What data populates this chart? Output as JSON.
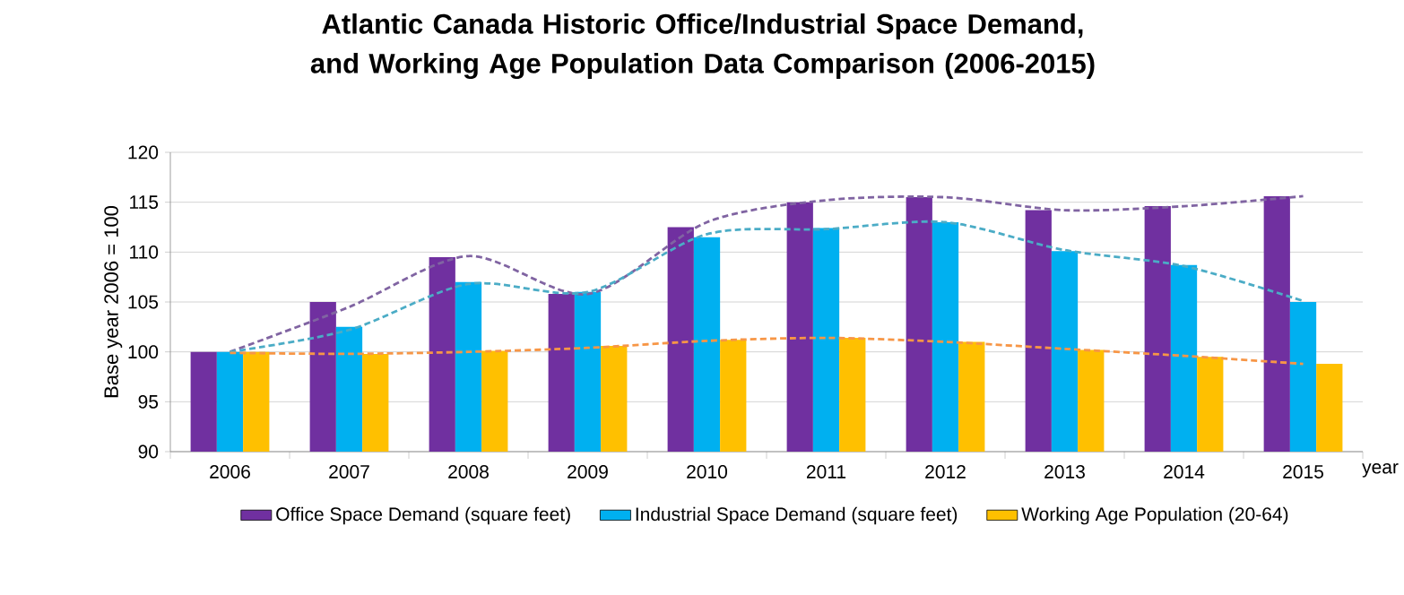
{
  "chart_data": {
    "type": "bar",
    "title": "Atlantic Canada Historic Office/Industrial Space Demand, and Working Age Population Data Comparison (2006-2015)",
    "ylabel": "Base year 2006 = 100",
    "xlabel": "year",
    "categories": [
      "2006",
      "2007",
      "2008",
      "2009",
      "2010",
      "2011",
      "2012",
      "2013",
      "2014",
      "2015"
    ],
    "series": [
      {
        "name": "Office Space Demand (square feet)",
        "color": "#7030a0",
        "values": [
          100,
          105.0,
          109.5,
          105.8,
          112.5,
          115.0,
          115.5,
          114.2,
          114.6,
          115.6
        ]
      },
      {
        "name": "Industrial Space Demand (square feet)",
        "color": "#00b0f0",
        "values": [
          100,
          102.5,
          107.0,
          106.0,
          111.5,
          112.4,
          113.0,
          110.1,
          108.7,
          105.0
        ]
      },
      {
        "name": "Working Age Population (20-64)",
        "color": "#ffc000",
        "values": [
          100,
          99.8,
          100.1,
          100.6,
          101.2,
          101.4,
          101.0,
          100.2,
          99.5,
          98.8
        ]
      },
      {
        "type": "line",
        "color": "#8064a2",
        "line_style": "dashed",
        "values": [
          100,
          104.5,
          109.6,
          105.8,
          113.0,
          115.2,
          115.5,
          114.2,
          114.6,
          115.6
        ]
      },
      {
        "type": "line",
        "color": "#4bacc6",
        "line_style": "dashed",
        "values": [
          100,
          102.2,
          106.8,
          106.0,
          111.8,
          112.3,
          113.0,
          110.2,
          108.6,
          105.1
        ]
      },
      {
        "type": "line",
        "color": "#f79646",
        "line_style": "dashed",
        "values": [
          99.9,
          99.8,
          100.0,
          100.4,
          101.1,
          101.4,
          101.0,
          100.3,
          99.6,
          98.8
        ]
      }
    ],
    "ylim": [
      90,
      120
    ],
    "yticks": [
      90,
      95,
      100,
      105,
      110,
      115,
      120
    ],
    "grid": "y",
    "legend": "bottom"
  }
}
